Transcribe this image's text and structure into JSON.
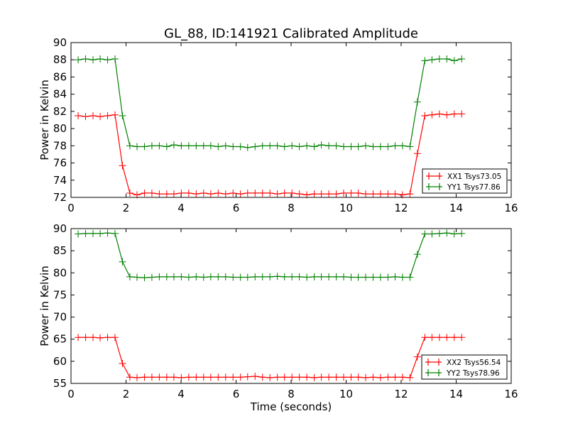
{
  "chart_data": [
    {
      "type": "line",
      "title": "GL_88, ID:141921 Calibrated Amplitude",
      "xlabel": "",
      "ylabel": "Power in Kelvin",
      "xlim": [
        0,
        16
      ],
      "ylim": [
        72,
        90
      ],
      "xticks": [
        "0",
        "2",
        "4",
        "6",
        "8",
        "10",
        "12",
        "14",
        "16"
      ],
      "yticks": [
        "72",
        "74",
        "76",
        "78",
        "80",
        "82",
        "84",
        "86",
        "88",
        "90"
      ],
      "legend_position": "lower-right",
      "x": [
        0.26,
        0.53,
        0.8,
        1.06,
        1.33,
        1.6,
        1.87,
        2.14,
        2.4,
        2.67,
        2.94,
        3.21,
        3.48,
        3.74,
        4.01,
        4.28,
        4.55,
        4.82,
        5.08,
        5.35,
        5.62,
        5.89,
        6.16,
        6.42,
        6.69,
        6.96,
        7.23,
        7.5,
        7.76,
        8.03,
        8.3,
        8.57,
        8.84,
        9.1,
        9.37,
        9.64,
        9.91,
        10.18,
        10.44,
        10.71,
        10.98,
        11.25,
        11.52,
        11.78,
        12.05,
        12.32,
        12.59,
        12.86,
        13.12,
        13.39,
        13.66,
        13.93,
        14.2
      ],
      "series": [
        {
          "name": "XX1 Tsys73.05",
          "color": "#ff0000",
          "values": [
            81.5,
            81.4,
            81.5,
            81.4,
            81.5,
            81.6,
            75.7,
            72.5,
            72.3,
            72.5,
            72.5,
            72.4,
            72.4,
            72.4,
            72.5,
            72.5,
            72.4,
            72.5,
            72.4,
            72.5,
            72.4,
            72.5,
            72.4,
            72.5,
            72.5,
            72.5,
            72.5,
            72.4,
            72.5,
            72.5,
            72.4,
            72.3,
            72.4,
            72.4,
            72.4,
            72.4,
            72.5,
            72.5,
            72.5,
            72.4,
            72.4,
            72.4,
            72.4,
            72.4,
            72.3,
            72.4,
            77.1,
            81.5,
            81.6,
            81.7,
            81.6,
            81.7,
            81.7
          ]
        },
        {
          "name": "YY1 Tsys77.86",
          "color": "#008000",
          "values": [
            88.0,
            88.1,
            88.0,
            88.1,
            88.0,
            88.1,
            81.5,
            78.0,
            77.9,
            77.9,
            78.0,
            78.0,
            77.9,
            78.1,
            78.0,
            78.0,
            78.0,
            78.0,
            78.0,
            77.9,
            78.0,
            77.9,
            77.9,
            77.8,
            77.9,
            78.0,
            78.0,
            78.0,
            77.9,
            78.0,
            77.9,
            78.0,
            77.9,
            78.1,
            78.0,
            78.0,
            77.9,
            77.9,
            77.9,
            78.0,
            77.9,
            77.9,
            77.9,
            78.0,
            78.0,
            77.9,
            83.1,
            87.9,
            88.0,
            88.1,
            88.1,
            87.9,
            88.1
          ]
        }
      ]
    },
    {
      "type": "line",
      "title": "",
      "xlabel": "Time (seconds)",
      "ylabel": "Power in Kelvin",
      "xlim": [
        0,
        16
      ],
      "ylim": [
        55,
        90
      ],
      "xticks": [
        "0",
        "2",
        "4",
        "6",
        "8",
        "10",
        "12",
        "14",
        "16"
      ],
      "yticks": [
        "55",
        "60",
        "65",
        "70",
        "75",
        "80",
        "85",
        "90"
      ],
      "legend_position": "lower-right",
      "x": [
        0.26,
        0.53,
        0.8,
        1.06,
        1.33,
        1.6,
        1.87,
        2.14,
        2.4,
        2.67,
        2.94,
        3.21,
        3.48,
        3.74,
        4.01,
        4.28,
        4.55,
        4.82,
        5.08,
        5.35,
        5.62,
        5.89,
        6.16,
        6.42,
        6.69,
        6.96,
        7.23,
        7.5,
        7.76,
        8.03,
        8.3,
        8.57,
        8.84,
        9.1,
        9.37,
        9.64,
        9.91,
        10.18,
        10.44,
        10.71,
        10.98,
        11.25,
        11.52,
        11.78,
        12.05,
        12.32,
        12.59,
        12.86,
        13.12,
        13.39,
        13.66,
        13.93,
        14.2
      ],
      "series": [
        {
          "name": "XX2 Tsys56.54",
          "color": "#ff0000",
          "values": [
            65.4,
            65.4,
            65.4,
            65.3,
            65.4,
            65.4,
            59.5,
            56.4,
            56.3,
            56.4,
            56.4,
            56.4,
            56.4,
            56.4,
            56.3,
            56.4,
            56.4,
            56.4,
            56.4,
            56.4,
            56.4,
            56.4,
            56.4,
            56.5,
            56.6,
            56.4,
            56.3,
            56.4,
            56.4,
            56.4,
            56.4,
            56.4,
            56.3,
            56.4,
            56.4,
            56.4,
            56.4,
            56.4,
            56.4,
            56.3,
            56.4,
            56.3,
            56.4,
            56.4,
            56.4,
            56.3,
            61.0,
            65.4,
            65.4,
            65.4,
            65.4,
            65.4,
            65.4
          ]
        },
        {
          "name": "YY2 Tsys78.96",
          "color": "#008000",
          "values": [
            88.8,
            88.9,
            88.9,
            88.9,
            89.0,
            88.9,
            82.5,
            79.1,
            79.0,
            78.9,
            79.0,
            79.1,
            79.1,
            79.1,
            79.1,
            79.0,
            79.1,
            79.0,
            79.1,
            79.1,
            79.1,
            79.0,
            79.0,
            79.0,
            79.1,
            79.1,
            79.1,
            79.2,
            79.1,
            79.1,
            79.1,
            79.0,
            79.1,
            79.1,
            79.1,
            79.1,
            79.1,
            79.0,
            79.0,
            79.0,
            79.0,
            79.0,
            79.0,
            79.1,
            79.0,
            79.0,
            84.2,
            88.8,
            88.8,
            88.9,
            89.0,
            88.8,
            88.9
          ]
        }
      ]
    }
  ]
}
